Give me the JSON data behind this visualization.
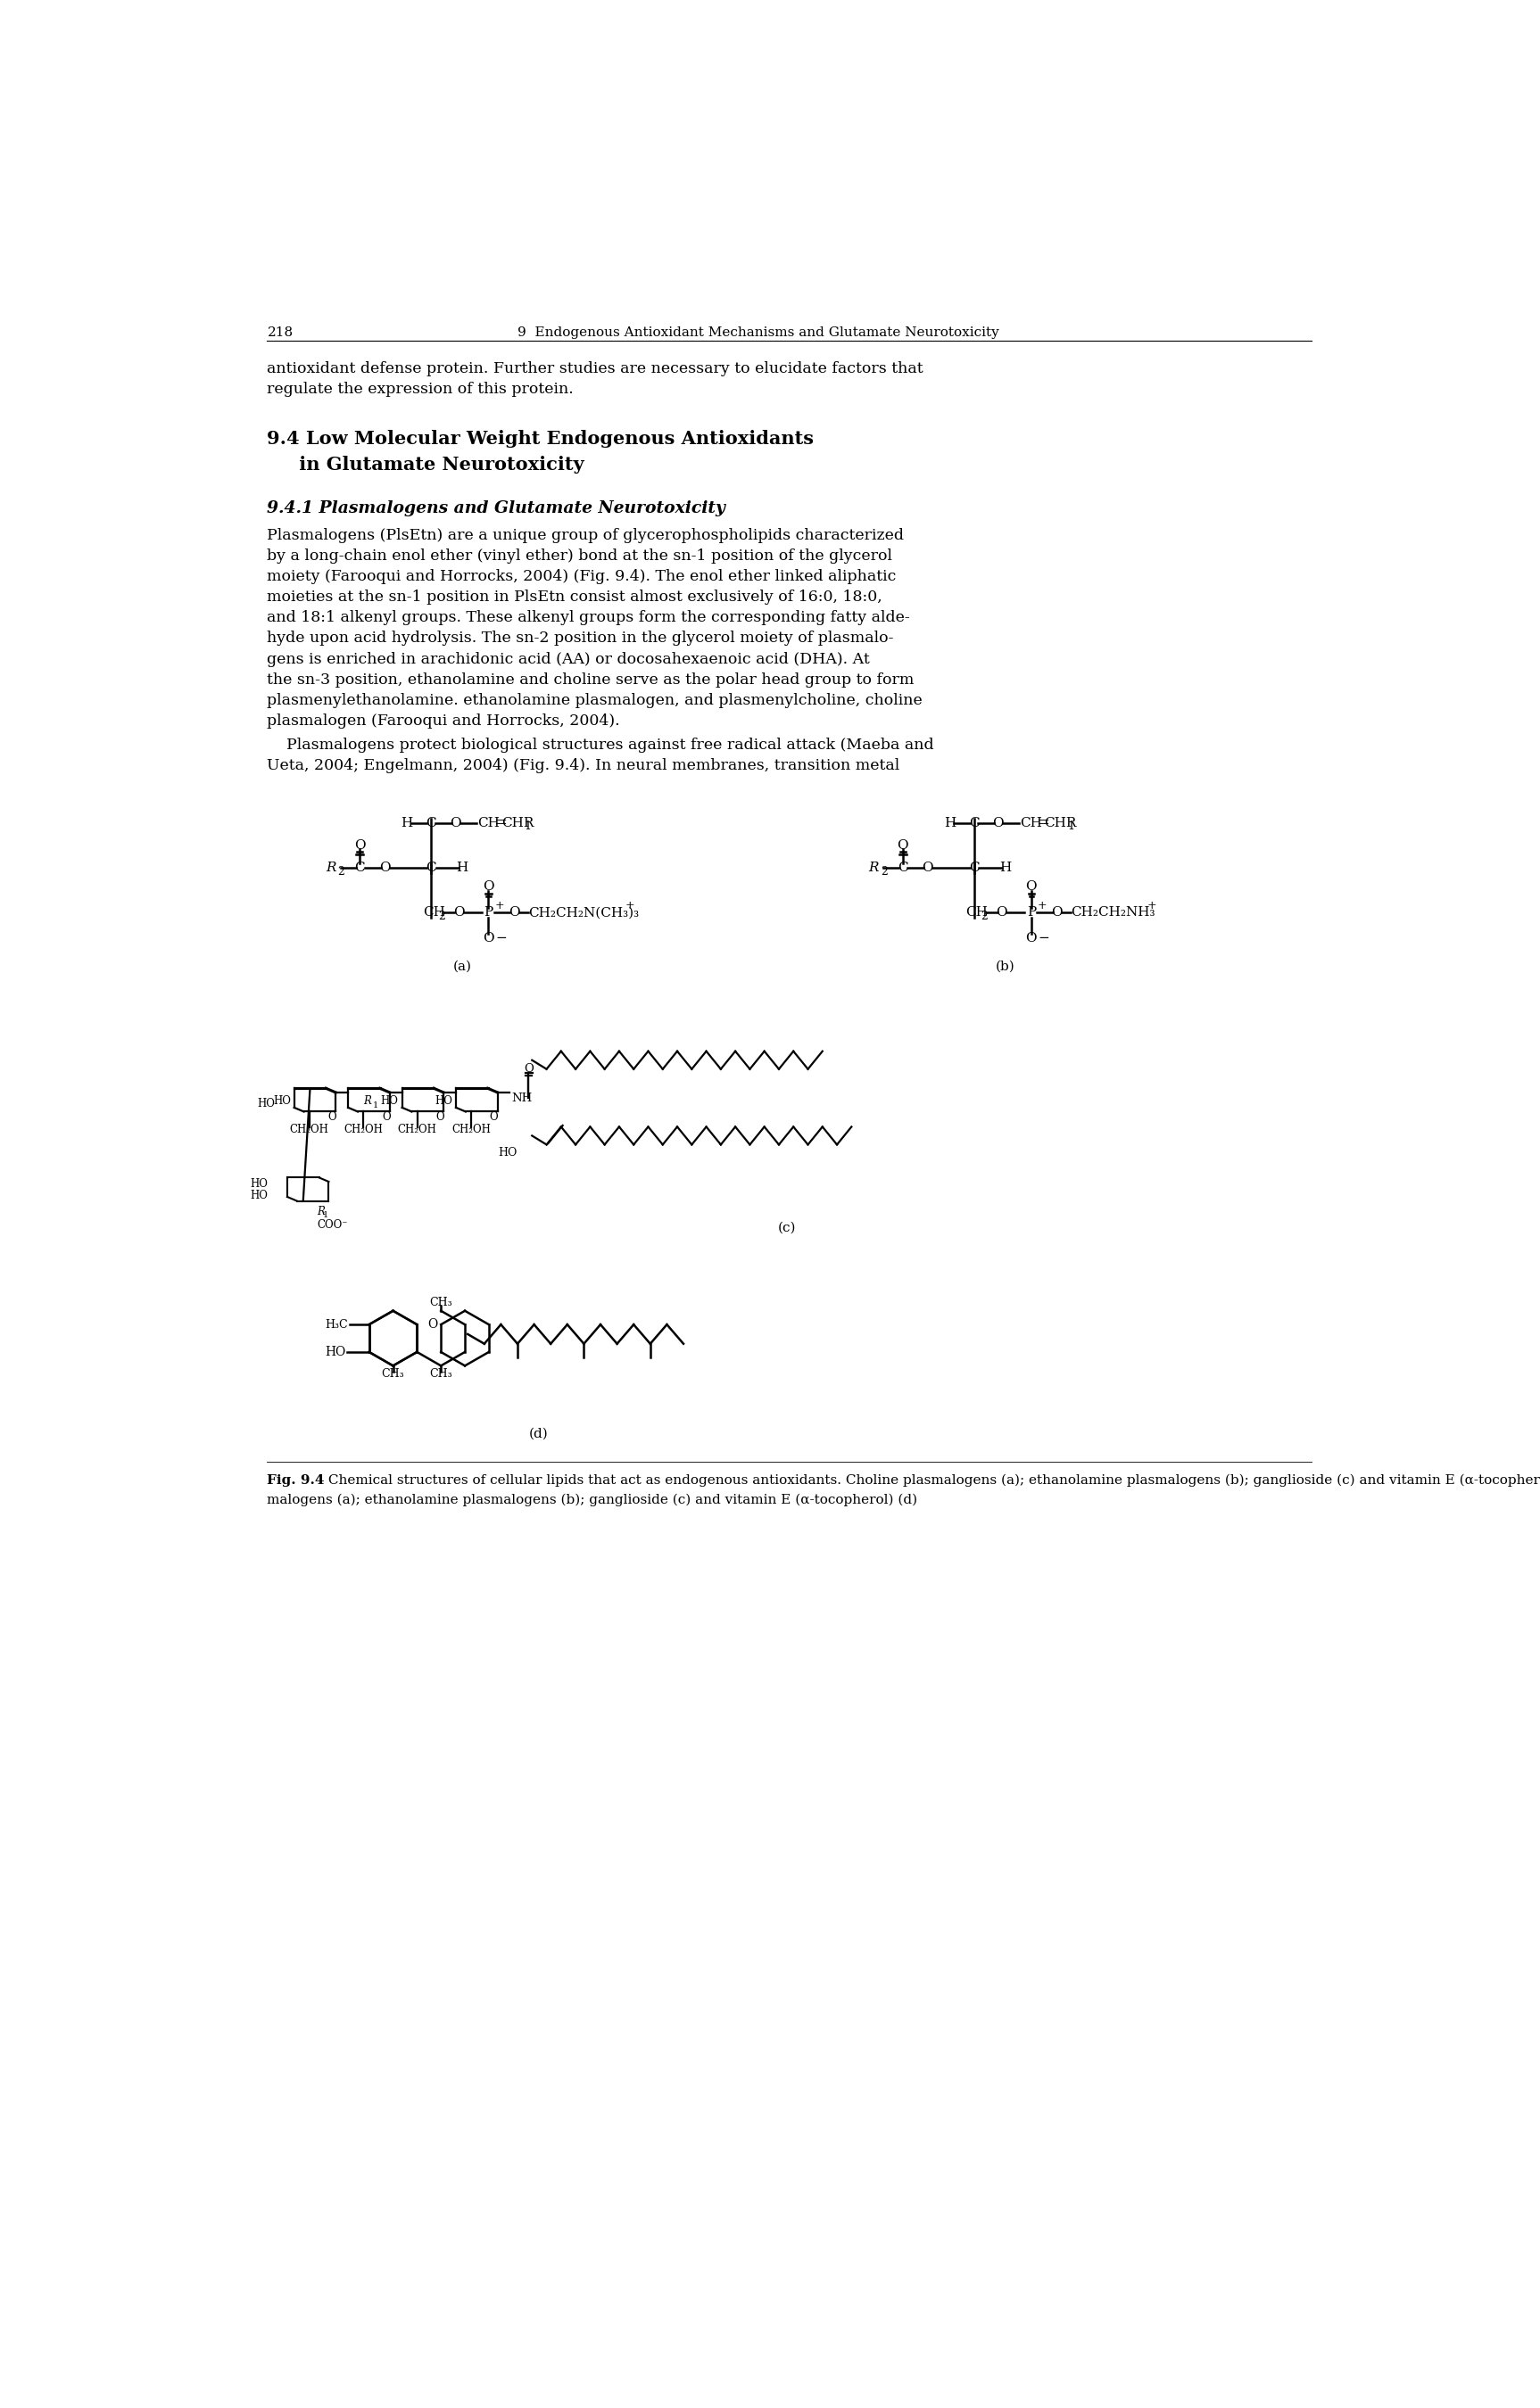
{
  "page_number": "218",
  "header": "9  Endogenous Antioxidant Mechanisms and Glutamate Neurotoxicity",
  "intro_line1": "antioxidant defense protein. Further studies are necessary to elucidate factors that",
  "intro_line2": "regulate the expression of this protein.",
  "section_title1": "9.4 Low Molecular Weight Endogenous Antioxidants",
  "section_title2": "     in Glutamate Neurotoxicity",
  "subsection_title": "9.4.1 Plasmalogens and Glutamate Neurotoxicity",
  "body_lines": [
    "Plasmalogens (PlsEtn) are a unique group of glycerophospholipids characterized",
    "by a long-chain enol ether (vinyl ether) bond at the sn-1 position of the glycerol",
    "moiety (Farooqui and Horrocks, 2004) (Fig. 9.4). The enol ether linked aliphatic",
    "moieties at the sn-1 position in PlsEtn consist almost exclusively of 16:0, 18:0,",
    "and 18:1 alkenyl groups. These alkenyl groups form the corresponding fatty alde-",
    "hyde upon acid hydrolysis. The sn-2 position in the glycerol moiety of plasmalo-",
    "gens is enriched in arachidonic acid (AA) or docosahexaenoic acid (DHA). At",
    "the sn-3 position, ethanolamine and choline serve as the polar head group to form",
    "plasmenylethanolamine. ethanolamine plasmalogen, and plasmenylcholine, choline",
    "plasmalogen (Farooqui and Horrocks, 2004)."
  ],
  "body2_line1": "    Plasmalogens protect biological structures against free radical attack (Maeba and",
  "body2_line2": "Ueta, 2004; Engelmann, 2004) (Fig. 9.4). In neural membranes, transition metal",
  "fig_caption_bold": "Fig. 9.4",
  "fig_caption_rest": " Chemical structures of cellular lipids that act as endogenous antioxidants. Choline plasmalogens (a); ethanolamine plasmalogens (b); ganglioside (c) and vitamin E (α-tocopherol) (d)",
  "label_a": "(a)",
  "label_b": "(b)",
  "label_c": "(c)",
  "label_d": "(d)",
  "bg_color": "#ffffff",
  "text_color": "#000000"
}
